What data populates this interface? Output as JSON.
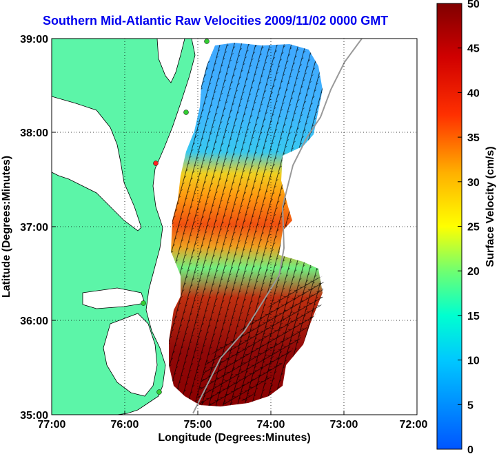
{
  "title": "Southern Mid-Atlantic Raw Velocities 2009/11/02 0000 GMT",
  "x_axis": {
    "label": "Longitude (Degrees:Minutes)",
    "ticks": [
      "77:00",
      "76:00",
      "75:00",
      "74:00",
      "73:00",
      "72:00"
    ]
  },
  "y_axis": {
    "label": "Latitude (Degrees:Minutes)",
    "ticks": [
      "39:00",
      "38:00",
      "37:00",
      "36:00",
      "35:00"
    ]
  },
  "colorbar": {
    "label": "Surface Velocity (cm/s)",
    "ticks": [
      "50",
      "45",
      "40",
      "35",
      "30",
      "25",
      "20",
      "15",
      "10",
      "5",
      "0"
    ],
    "range": [
      0,
      50
    ]
  },
  "colors": {
    "land": "#5cf5a8",
    "title": "#0000ee",
    "station": "#33cc33",
    "station_highlight": "#ff2222"
  },
  "map_extent": {
    "lon": [
      -77,
      -72
    ],
    "lat": [
      35,
      39
    ]
  },
  "velocity_regions": [
    {
      "name": "northern-blue",
      "speed_cm_s": 10
    },
    {
      "name": "central-orange",
      "speed_cm_s": 32
    },
    {
      "name": "southern-red",
      "speed_cm_s": 48
    }
  ]
}
